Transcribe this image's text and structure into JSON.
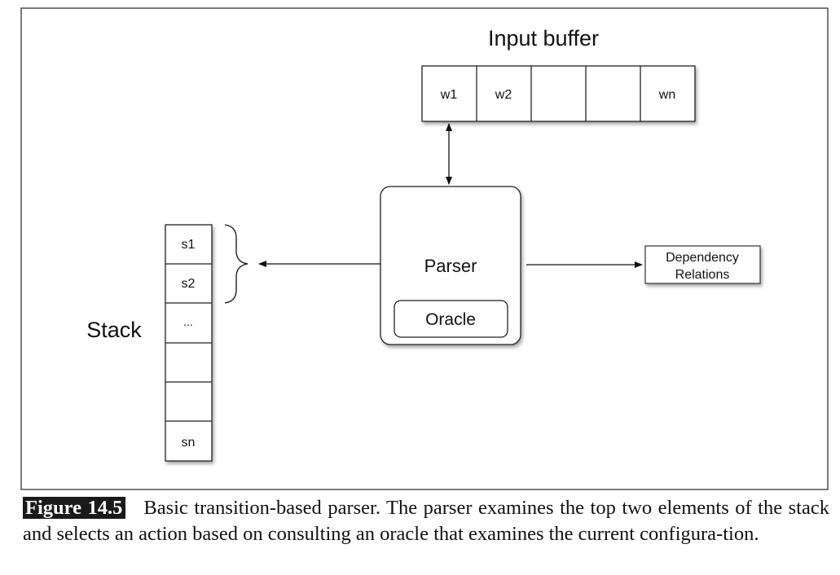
{
  "diagram": {
    "input_buffer": {
      "title": "Input buffer",
      "cells": [
        "w1",
        "w2",
        "",
        "",
        "wn"
      ]
    },
    "parser": {
      "label": "Parser",
      "oracle_label": "Oracle"
    },
    "stack": {
      "title": "Stack",
      "cells": [
        "s1",
        "s2",
        "...",
        "",
        "",
        "sn"
      ]
    },
    "output": {
      "line1": "Dependency",
      "line2": "Relations"
    }
  },
  "caption": {
    "label": "Figure 14.5",
    "text": "Basic transition-based parser. The parser examines the top two elements of the stack and selects an action based on consulting an oracle that examines the current configura-tion."
  }
}
